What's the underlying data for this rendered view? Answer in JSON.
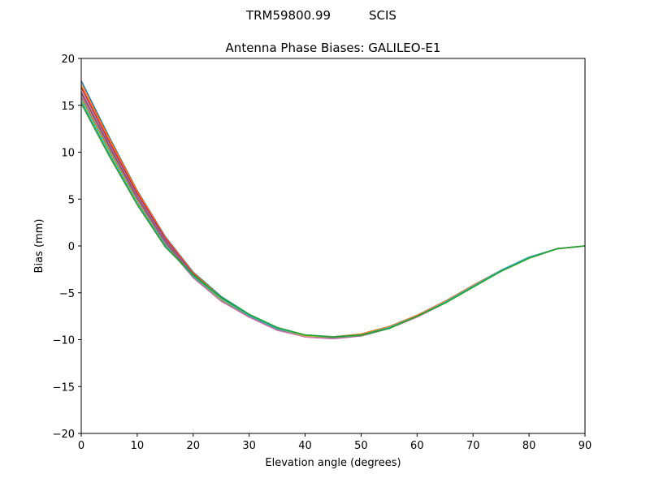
{
  "figure": {
    "suptitle_antenna": "TRM59800.99",
    "suptitle_radome": "SCIS"
  },
  "chart_data": {
    "type": "line",
    "title": "Antenna Phase Biases: GALILEO-E1",
    "xlabel": "Elevation angle (degrees)",
    "ylabel": "Bias (mm)",
    "xlim": [
      0,
      90
    ],
    "ylim": [
      -20,
      20
    ],
    "xticks": [
      0,
      10,
      20,
      30,
      40,
      50,
      60,
      70,
      80,
      90
    ],
    "yticks": [
      -20,
      -15,
      -10,
      -5,
      0,
      5,
      10,
      15,
      20
    ],
    "x": [
      0,
      5,
      10,
      15,
      20,
      25,
      30,
      35,
      40,
      45,
      50,
      55,
      60,
      65,
      70,
      75,
      80,
      85,
      90
    ],
    "grid": false,
    "series": [
      {
        "color": "#1f77b4",
        "values": [
          17.6,
          11.6,
          5.9,
          1.0,
          -2.8,
          -5.4,
          -7.3,
          -8.7,
          -9.5,
          -9.7,
          -9.4,
          -8.6,
          -7.4,
          -5.9,
          -4.2,
          -2.6,
          -1.2,
          -0.3,
          0.0
        ]
      },
      {
        "color": "#ff7f0e",
        "values": [
          17.2,
          11.4,
          5.8,
          0.9,
          -2.9,
          -5.5,
          -7.4,
          -8.7,
          -9.6,
          -9.7,
          -9.4,
          -8.6,
          -7.4,
          -5.9,
          -4.2,
          -2.6,
          -1.2,
          -0.3,
          0.0
        ]
      },
      {
        "color": "#d62728",
        "values": [
          16.9,
          11.1,
          5.6,
          0.8,
          -3.0,
          -5.6,
          -7.4,
          -8.8,
          -9.6,
          -9.8,
          -9.5,
          -8.7,
          -7.5,
          -6.0,
          -4.3,
          -2.7,
          -1.3,
          -0.3,
          0.0
        ]
      },
      {
        "color": "#9467bd",
        "values": [
          16.5,
          10.8,
          5.3,
          0.6,
          -3.1,
          -5.7,
          -7.5,
          -8.9,
          -9.7,
          -9.8,
          -9.5,
          -8.7,
          -7.5,
          -6.0,
          -4.3,
          -2.7,
          -1.3,
          -0.3,
          0.0
        ]
      },
      {
        "color": "#8c564b",
        "values": [
          16.3,
          10.6,
          5.1,
          0.4,
          -3.3,
          -5.8,
          -7.6,
          -8.9,
          -9.7,
          -9.9,
          -9.6,
          -8.8,
          -7.5,
          -6.0,
          -4.3,
          -2.7,
          -1.3,
          -0.3,
          0.0
        ]
      },
      {
        "color": "#e377c2",
        "values": [
          16.0,
          10.3,
          4.8,
          0.2,
          -3.4,
          -5.9,
          -7.6,
          -9.0,
          -9.7,
          -9.9,
          -9.6,
          -8.8,
          -7.6,
          -6.1,
          -4.4,
          -2.7,
          -1.3,
          -0.3,
          0.0
        ]
      },
      {
        "color": "#7f7f7f",
        "values": [
          15.8,
          10.2,
          4.7,
          0.1,
          -3.3,
          -5.8,
          -7.5,
          -8.9,
          -9.6,
          -9.8,
          -9.6,
          -8.8,
          -7.5,
          -6.0,
          -4.3,
          -2.7,
          -1.3,
          -0.3,
          0.0
        ]
      },
      {
        "color": "#bcbd22",
        "values": [
          15.6,
          10.0,
          4.6,
          0.0,
          -3.2,
          -5.7,
          -7.4,
          -8.8,
          -9.6,
          -9.7,
          -9.5,
          -8.7,
          -7.5,
          -6.0,
          -4.3,
          -2.6,
          -1.2,
          -0.3,
          0.0
        ]
      },
      {
        "color": "#17becf",
        "values": [
          15.4,
          9.8,
          4.5,
          0.0,
          -3.2,
          -5.6,
          -7.4,
          -8.8,
          -9.5,
          -9.7,
          -9.5,
          -8.7,
          -7.5,
          -6.0,
          -4.3,
          -2.6,
          -1.2,
          -0.3,
          0.0
        ]
      },
      {
        "color": "#2ca02c",
        "values": [
          15.2,
          9.6,
          4.4,
          -0.1,
          -3.1,
          -5.5,
          -7.3,
          -8.7,
          -9.5,
          -9.7,
          -9.5,
          -8.8,
          -7.5,
          -6.1,
          -4.4,
          -2.7,
          -1.3,
          -0.3,
          0.0
        ]
      }
    ]
  }
}
